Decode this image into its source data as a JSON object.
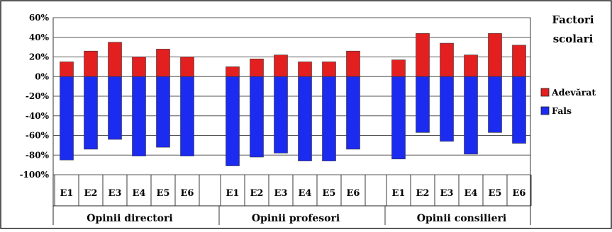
{
  "chart_data": {
    "type": "bar",
    "stacked": true,
    "title": "",
    "legend": {
      "title_lines": [
        "Factori",
        "scolari"
      ],
      "placement": "right"
    },
    "ylim": [
      -100,
      60
    ],
    "yticks": [
      "60%",
      "40%",
      "20%",
      "0%",
      "-20%",
      "-40%",
      "-60%",
      "-80%",
      "-100%"
    ],
    "ytick_values": [
      60,
      40,
      20,
      0,
      -20,
      -40,
      -60,
      -80,
      -100
    ],
    "grid": true,
    "groups": [
      "Opinii directori",
      "Opinii profesori",
      "Opinii consilieri"
    ],
    "categories": [
      "E1",
      "E2",
      "E3",
      "E4",
      "E5",
      "E6"
    ],
    "series": [
      {
        "name": "Adevărat",
        "color": "#e31f1f",
        "values": [
          [
            15,
            26,
            35,
            20,
            28,
            20
          ],
          [
            10,
            18,
            22,
            15,
            15,
            26
          ],
          [
            17,
            44,
            34,
            22,
            44,
            32
          ]
        ]
      },
      {
        "name": "Fals",
        "color": "#1c2bf0",
        "values": [
          [
            -85,
            -74,
            -64,
            -81,
            -72,
            -81
          ],
          [
            -91,
            -82,
            -78,
            -86,
            -86,
            -74
          ],
          [
            -84,
            -57,
            -66,
            -79,
            -57,
            -68
          ]
        ]
      }
    ]
  }
}
